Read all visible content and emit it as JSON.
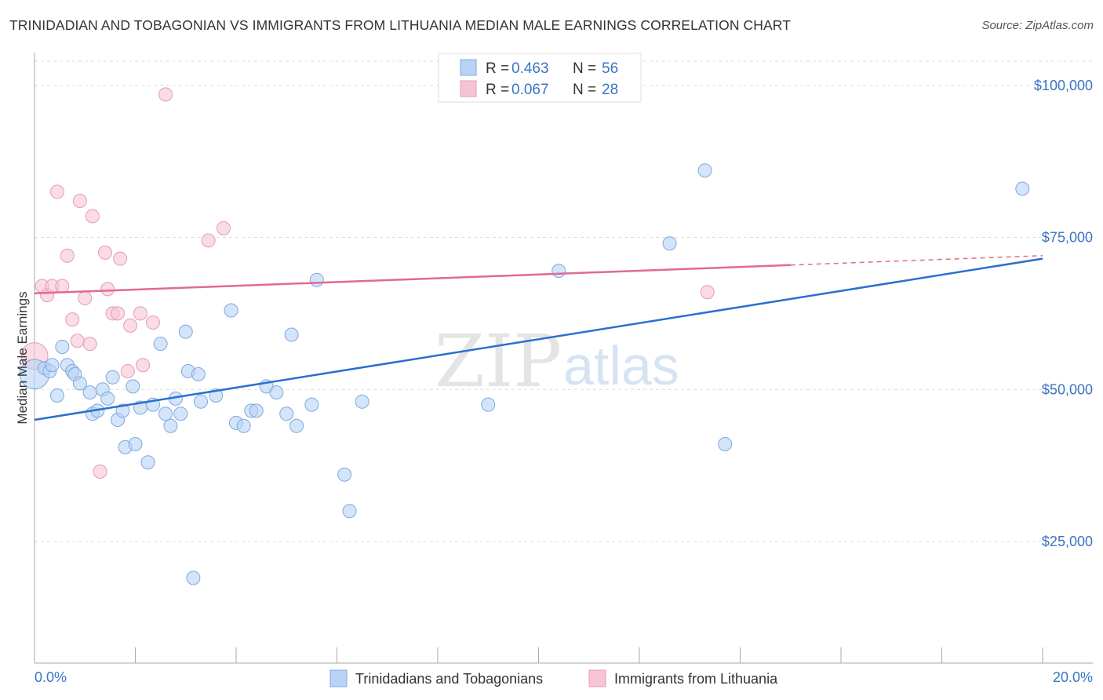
{
  "title": "TRINIDADIAN AND TOBAGONIAN VS IMMIGRANTS FROM LITHUANIA MEDIAN MALE EARNINGS CORRELATION CHART",
  "source": "Source: ZipAtlas.com",
  "watermark": {
    "part1": "ZIP",
    "part2": "atlas"
  },
  "legend": {
    "r_label": "R =",
    "n_label": "N =",
    "entries": [
      {
        "r": "0.463",
        "n": "56"
      },
      {
        "r": "0.067",
        "n": "28"
      }
    ]
  },
  "colors": {
    "series1_fill": "#b8d3f5",
    "series1_stroke": "#7ea8e0",
    "series1_line": "#2a6fcf",
    "series2_fill": "#f7c4d3",
    "series2_stroke": "#e89ab3",
    "series2_line": "#e06a92",
    "tick_label": "#3b74c4",
    "grid": "#dddddd"
  },
  "chart_data": {
    "type": "scatter",
    "xlabel": "",
    "ylabel": "Median Male Earnings",
    "xlim": [
      0,
      20
    ],
    "ylim": [
      5000,
      105000
    ],
    "x_tick_labels": {
      "min": "0.0%",
      "max": "20.0%"
    },
    "y_ticks": [
      {
        "value": 25000,
        "label": "$25,000"
      },
      {
        "value": 50000,
        "label": "$50,000"
      },
      {
        "value": 75000,
        "label": "$75,000"
      },
      {
        "value": 100000,
        "label": "$100,000"
      }
    ],
    "grid": true,
    "legend_position": "top-center",
    "series": [
      {
        "name": "Trinidadians and Tobagonians",
        "trend": {
          "x0": 0,
          "y0": 45000,
          "x1": 20,
          "y1": 71500,
          "dashed_from": null
        },
        "points": [
          [
            0.0,
            52500,
            2.2
          ],
          [
            0.2,
            53500,
            1
          ],
          [
            0.3,
            53000,
            1
          ],
          [
            0.35,
            54000,
            1
          ],
          [
            0.45,
            49000,
            1
          ],
          [
            0.55,
            57000,
            1
          ],
          [
            0.65,
            54000,
            1
          ],
          [
            0.75,
            53000,
            1
          ],
          [
            0.8,
            52500,
            1
          ],
          [
            0.9,
            51000,
            1
          ],
          [
            1.1,
            49500,
            1
          ],
          [
            1.15,
            46000,
            1
          ],
          [
            1.25,
            46500,
            1
          ],
          [
            1.35,
            50000,
            1
          ],
          [
            1.45,
            48500,
            1
          ],
          [
            1.55,
            52000,
            1
          ],
          [
            1.65,
            45000,
            1
          ],
          [
            1.75,
            46500,
            1
          ],
          [
            1.8,
            40500,
            1
          ],
          [
            1.95,
            50500,
            1
          ],
          [
            2.0,
            41000,
            1
          ],
          [
            2.1,
            47000,
            1
          ],
          [
            2.25,
            38000,
            1
          ],
          [
            2.35,
            47500,
            1
          ],
          [
            2.5,
            57500,
            1
          ],
          [
            2.6,
            46000,
            1
          ],
          [
            2.7,
            44000,
            1
          ],
          [
            2.8,
            48500,
            1
          ],
          [
            2.9,
            46000,
            1
          ],
          [
            3.0,
            59500,
            1
          ],
          [
            3.05,
            53000,
            1
          ],
          [
            3.25,
            52500,
            1
          ],
          [
            3.15,
            19000,
            1
          ],
          [
            3.3,
            48000,
            1
          ],
          [
            3.6,
            49000,
            1
          ],
          [
            3.9,
            63000,
            1
          ],
          [
            4.0,
            44500,
            1
          ],
          [
            4.15,
            44000,
            1
          ],
          [
            4.3,
            46500,
            1
          ],
          [
            4.4,
            46500,
            1
          ],
          [
            4.6,
            50500,
            1
          ],
          [
            4.8,
            49500,
            1
          ],
          [
            5.0,
            46000,
            1
          ],
          [
            5.1,
            59000,
            1
          ],
          [
            5.2,
            44000,
            1
          ],
          [
            5.5,
            47500,
            1
          ],
          [
            5.6,
            68000,
            1
          ],
          [
            6.15,
            36000,
            1
          ],
          [
            6.25,
            30000,
            1
          ],
          [
            6.5,
            48000,
            1
          ],
          [
            9.0,
            47500,
            1
          ],
          [
            10.4,
            69500,
            1
          ],
          [
            12.6,
            74000,
            1
          ],
          [
            13.3,
            86000,
            1
          ],
          [
            13.7,
            41000,
            1
          ],
          [
            19.6,
            83000,
            1
          ]
        ]
      },
      {
        "name": "Immigrants from Lithuania",
        "trend": {
          "x0": 0,
          "y0": 65800,
          "x1": 20,
          "y1": 72000,
          "dashed_from": 15.0
        },
        "points": [
          [
            0.0,
            55500,
            2.0
          ],
          [
            0.15,
            67000,
            1
          ],
          [
            0.25,
            65500,
            1
          ],
          [
            0.35,
            67000,
            1
          ],
          [
            0.45,
            82500,
            1
          ],
          [
            0.55,
            67000,
            1
          ],
          [
            0.65,
            72000,
            1
          ],
          [
            0.75,
            61500,
            1
          ],
          [
            0.85,
            58000,
            1
          ],
          [
            0.9,
            81000,
            1
          ],
          [
            1.0,
            65000,
            1
          ],
          [
            1.1,
            57500,
            1
          ],
          [
            1.15,
            78500,
            1
          ],
          [
            1.3,
            36500,
            1
          ],
          [
            1.4,
            72500,
            1
          ],
          [
            1.45,
            66500,
            1
          ],
          [
            1.55,
            62500,
            1
          ],
          [
            1.65,
            62500,
            1
          ],
          [
            1.7,
            71500,
            1
          ],
          [
            1.85,
            53000,
            1
          ],
          [
            1.9,
            60500,
            1
          ],
          [
            2.1,
            62500,
            1
          ],
          [
            2.15,
            54000,
            1
          ],
          [
            2.35,
            61000,
            1
          ],
          [
            2.6,
            98500,
            1
          ],
          [
            3.45,
            74500,
            1
          ],
          [
            3.75,
            76500,
            1
          ],
          [
            13.35,
            66000,
            1
          ]
        ]
      }
    ]
  },
  "bottom_legend": {
    "items": [
      "Trinidadians and Tobagonians",
      "Immigrants from Lithuania"
    ]
  }
}
